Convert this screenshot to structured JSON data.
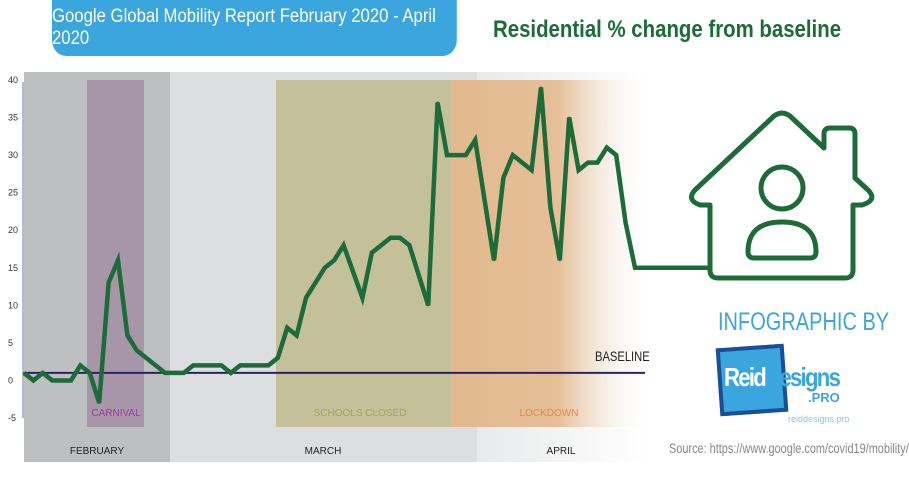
{
  "header": {
    "title": "Google Global Mobility Report February 2020 - April 2020",
    "subtitle": "Residential % change from baseline"
  },
  "colors": {
    "line": "#1c6b38",
    "baseline": "#2b2366",
    "title_bg": "#3ba6dd",
    "carnival": "#a796a8",
    "schools": "#c3c09a",
    "lockdown": "#e2b98e"
  },
  "chart_data": {
    "type": "line",
    "title": "Residential % change from baseline",
    "xlabel": "",
    "ylabel": "",
    "ylim": [
      -5,
      40
    ],
    "yticks": [
      "40",
      "35",
      "30",
      "25",
      "20",
      "15",
      "10",
      "5",
      "0",
      "-5"
    ],
    "ytick_values": [
      40,
      35,
      30,
      25,
      20,
      15,
      10,
      5,
      0,
      -5
    ],
    "baseline_label": "BASELINE",
    "baseline_value": 1,
    "months": [
      "FEBRUARY",
      "MARCH",
      "APRIL"
    ],
    "events": [
      "CARNIVAL",
      "SCHOOLS CLOSED",
      "LOCKDOWN"
    ],
    "series": [
      {
        "name": "Residential",
        "x": [
          0,
          1,
          2,
          3,
          5,
          6,
          7,
          8,
          9,
          10,
          11,
          12,
          15,
          17,
          18,
          21,
          22,
          23,
          26,
          27,
          28,
          29,
          30,
          32,
          33,
          34,
          36,
          37,
          39,
          40,
          41,
          43,
          44,
          45,
          47,
          48,
          50,
          51,
          52,
          54,
          55,
          56,
          57,
          58,
          59,
          60,
          61,
          62,
          63,
          64,
          65
        ],
        "values": [
          1,
          0,
          1,
          0,
          0,
          2,
          1,
          -3,
          13,
          16,
          6,
          4,
          1,
          1,
          2,
          2,
          1,
          2,
          2,
          3,
          7,
          6,
          11,
          15,
          16,
          18,
          11,
          17,
          19,
          19,
          18,
          10,
          37,
          30,
          30,
          32,
          16,
          27,
          30,
          28,
          39,
          23,
          16,
          35,
          28,
          29,
          29,
          31,
          30,
          21,
          15
        ]
      }
    ]
  },
  "credit": {
    "infographic_by": "INFOGRAPHIC BY",
    "logo_text": "ReidDesigns .PRO",
    "site": "reiddesigns.pro",
    "source": "Source: https://www.google.com/covid19/mobility/"
  }
}
